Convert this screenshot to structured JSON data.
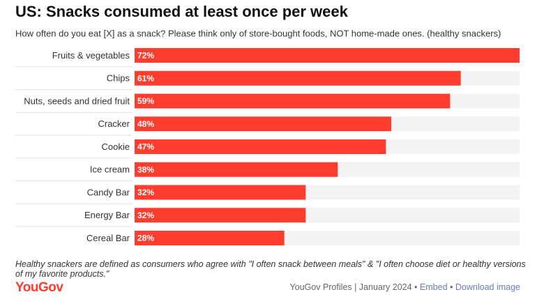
{
  "chart_data": {
    "type": "bar",
    "orientation": "horizontal",
    "title": "US: Snacks consumed at least once per week",
    "subtitle": "How often do you eat [X] as a snack? Please think only of store-bought foods, NOT home-made ones. (healthy snackers)",
    "categories": [
      "Fruits & vegetables",
      "Chips",
      "Nuts, seeds and dried fruit",
      "Cracker",
      "Cookie",
      "Ice cream",
      "Candy Bar",
      "Energy Bar",
      "Cereal Bar"
    ],
    "values": [
      72,
      61,
      59,
      48,
      47,
      38,
      32,
      32,
      28
    ],
    "value_labels": [
      "72%",
      "61%",
      "59%",
      "48%",
      "47%",
      "38%",
      "32%",
      "32%",
      "28%"
    ],
    "color": "#ff3d2e",
    "track_color": "#f3f3f3"
  },
  "note": "Healthy snackers are defined as consumers who agree with \"I often snack between meals\" & \"I often choose diet or healthy versions of my favorite products.\"",
  "logo": "YouGov",
  "footer": {
    "credit": "YouGov Profiles | January 2024",
    "separator": "•",
    "links": [
      "Embed",
      "Download image"
    ]
  }
}
